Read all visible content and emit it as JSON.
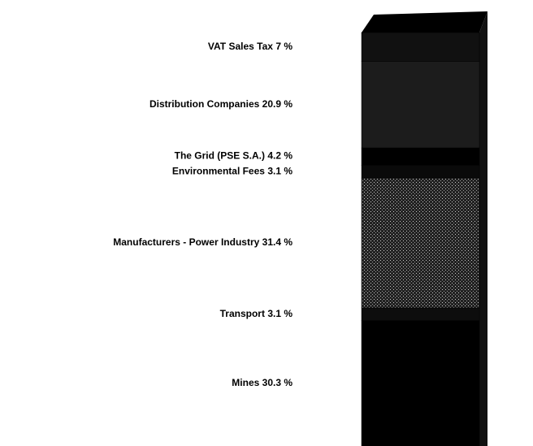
{
  "chart_data": {
    "type": "stacked-column",
    "series": [
      {
        "name": "VAT Sales Tax",
        "values": [
          7
        ],
        "value_labels": [
          "7 %"
        ],
        "color": "#111111"
      },
      {
        "name": "Distribution Companies",
        "values": [
          20.9
        ],
        "value_labels": [
          "20.9 %"
        ],
        "color": "#1c1c1c"
      },
      {
        "name": "The Grid (PSE S.A.)",
        "values": [
          4.2
        ],
        "value_labels": [
          "4.2 %"
        ],
        "color": "#000000"
      },
      {
        "name": "Environmental Fees",
        "values": [
          3.1
        ],
        "value_labels": [
          "3.1 %"
        ],
        "color": "#0a0a0a"
      },
      {
        "name": "Manufacturers - Power Industry",
        "values": [
          31.4
        ],
        "value_labels": [
          "31.4 %"
        ],
        "color": "#6a6a6a"
      },
      {
        "name": "Transport",
        "values": [
          3.1
        ],
        "value_labels": [
          "3.1 %"
        ],
        "color": "#0d0d0d"
      },
      {
        "name": "Mines",
        "values": [
          30.3
        ],
        "value_labels": [
          "30.3 %"
        ],
        "color": "#000000"
      }
    ]
  }
}
